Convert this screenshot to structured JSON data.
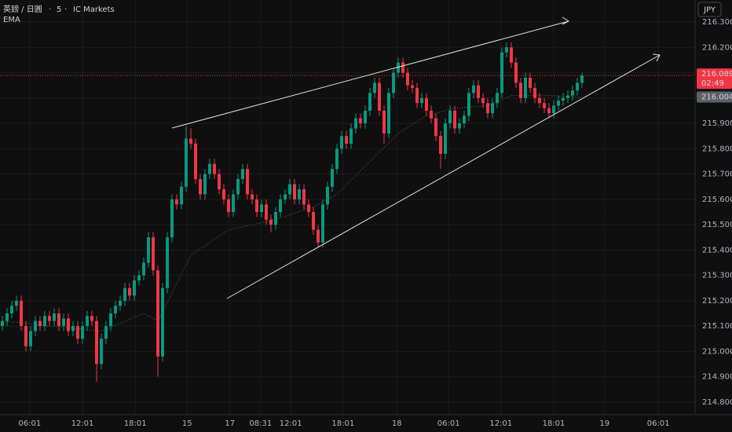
{
  "chart_data": {
    "type": "candlestick",
    "symbol": "英鎊 / 日圓",
    "interval": "5",
    "exchange": "IC Markets",
    "indicator": "EMA",
    "currency": "JPY",
    "up_color": "#089981",
    "down_color": "#f23645",
    "grid": true,
    "ylim": [
      214.75,
      216.387
    ],
    "xlim": [
      -0.5,
      147
    ],
    "yticks": [
      {
        "value": 216.3,
        "label": "216.300"
      },
      {
        "value": 216.2,
        "label": "216.200"
      },
      {
        "value": 216.1,
        "label": "216.100"
      },
      {
        "value": 216.0,
        "label": "216.000"
      },
      {
        "value": 215.9,
        "label": "215.900"
      },
      {
        "value": 215.8,
        "label": "215.800"
      },
      {
        "value": 215.7,
        "label": "215.700"
      },
      {
        "value": 215.6,
        "label": "215.600"
      },
      {
        "value": 215.5,
        "label": "215.500"
      },
      {
        "value": 215.4,
        "label": "215.400"
      },
      {
        "value": 215.3,
        "label": "215.300"
      },
      {
        "value": 215.2,
        "label": "215.200"
      },
      {
        "value": 215.1,
        "label": "215.100"
      },
      {
        "value": 215.0,
        "label": "215.000"
      },
      {
        "value": 214.9,
        "label": "214.900"
      },
      {
        "value": 214.8,
        "label": "214.800"
      }
    ],
    "xticks": [
      {
        "value": 5.8,
        "label": "06:01"
      },
      {
        "value": 17,
        "label": "12:01"
      },
      {
        "value": 28.2,
        "label": "18:01"
      },
      {
        "value": 39.2,
        "label": "15"
      },
      {
        "value": 48.3,
        "label": "17"
      },
      {
        "value": 54.8,
        "label": "08:31"
      },
      {
        "value": 61.2,
        "label": "12:01"
      },
      {
        "value": 72.3,
        "label": "18:01"
      },
      {
        "value": 83.7,
        "label": "18"
      },
      {
        "value": 94.7,
        "label": "06:01"
      },
      {
        "value": 105.8,
        "label": "12:01"
      },
      {
        "value": 117,
        "label": "18:01"
      },
      {
        "value": 127.8,
        "label": "19"
      },
      {
        "value": 139.2,
        "label": "06:01"
      }
    ],
    "open": [
      215.1,
      215.12,
      215.15,
      215.18,
      215.2,
      215.1,
      215.02,
      215.08,
      215.12,
      215.1,
      215.14,
      215.12,
      215.15,
      215.1,
      215.13,
      215.08,
      215.1,
      215.05,
      215.1,
      215.14,
      215.12,
      214.95,
      215.05,
      215.1,
      215.15,
      215.18,
      215.2,
      215.25,
      215.22,
      215.28,
      215.3,
      215.35,
      215.45,
      215.32,
      214.98,
      215.25,
      215.45,
      215.6,
      215.58,
      215.65,
      215.84,
      215.82,
      215.68,
      215.62,
      215.7,
      215.74,
      215.7,
      215.64,
      215.6,
      215.55,
      215.62,
      215.68,
      215.72,
      215.62,
      215.6,
      215.55,
      215.58,
      215.52,
      215.5,
      215.55,
      215.6,
      215.62,
      215.66,
      215.6,
      215.64,
      215.58,
      215.55,
      215.48,
      215.43,
      215.58,
      215.65,
      215.72,
      215.8,
      215.85,
      215.82,
      215.88,
      215.92,
      215.9,
      215.95,
      216.02,
      216.06,
      215.95,
      215.86,
      216.02,
      216.1,
      216.14,
      216.1,
      216.05,
      216.04,
      215.98,
      216.0,
      215.95,
      215.92,
      215.85,
      215.78,
      215.9,
      215.95,
      215.88,
      215.9,
      215.93,
      216.02,
      216.05,
      216.0,
      215.98,
      215.94,
      215.98,
      216.02,
      216.18,
      216.2,
      216.14,
      216.06,
      216.0,
      216.08,
      216.04,
      216.0,
      215.98,
      215.96,
      215.94,
      215.97,
      215.99,
      216.0,
      216.01,
      216.03,
      216.06
    ],
    "high": [
      215.14,
      215.17,
      215.2,
      215.22,
      215.22,
      215.12,
      215.1,
      215.14,
      215.14,
      215.16,
      215.16,
      215.17,
      215.17,
      215.15,
      215.15,
      215.12,
      215.12,
      215.12,
      215.16,
      215.16,
      215.14,
      215.07,
      215.12,
      215.17,
      215.2,
      215.22,
      215.27,
      215.27,
      215.3,
      215.32,
      215.37,
      215.47,
      215.47,
      215.34,
      215.27,
      215.47,
      215.62,
      215.62,
      215.67,
      215.89,
      215.88,
      215.84,
      215.7,
      215.72,
      215.76,
      215.76,
      215.72,
      215.66,
      215.62,
      215.64,
      215.7,
      215.74,
      215.74,
      215.64,
      215.62,
      215.6,
      215.6,
      215.54,
      215.57,
      215.62,
      215.64,
      215.68,
      215.68,
      215.66,
      215.66,
      215.6,
      215.57,
      215.5,
      215.6,
      215.67,
      215.74,
      215.82,
      215.87,
      215.87,
      215.9,
      215.94,
      215.94,
      215.97,
      216.04,
      216.08,
      216.08,
      215.97,
      216.04,
      216.12,
      216.16,
      216.16,
      216.12,
      216.07,
      216.06,
      216.02,
      216.02,
      215.97,
      215.94,
      215.87,
      215.92,
      215.97,
      215.97,
      215.92,
      215.95,
      216.04,
      216.07,
      216.07,
      216.02,
      216.0,
      216.0,
      216.04,
      216.2,
      216.22,
      216.22,
      216.16,
      216.08,
      216.1,
      216.1,
      216.06,
      216.02,
      216.0,
      215.98,
      215.99,
      216.01,
      216.02,
      216.03,
      216.05,
      216.08,
      216.1
    ],
    "low": [
      215.08,
      215.1,
      215.13,
      215.16,
      215.08,
      215.0,
      215.0,
      215.06,
      215.08,
      215.08,
      215.1,
      215.1,
      215.08,
      215.08,
      215.06,
      215.06,
      215.03,
      215.03,
      215.08,
      215.1,
      214.88,
      214.93,
      215.03,
      215.08,
      215.13,
      215.16,
      215.18,
      215.2,
      215.2,
      215.26,
      215.28,
      215.33,
      215.3,
      214.9,
      214.96,
      215.23,
      215.43,
      215.56,
      215.56,
      215.63,
      215.8,
      215.66,
      215.6,
      215.6,
      215.68,
      215.68,
      215.62,
      215.58,
      215.53,
      215.53,
      215.6,
      215.66,
      215.6,
      215.58,
      215.53,
      215.53,
      215.5,
      215.47,
      215.48,
      215.53,
      215.58,
      215.6,
      215.58,
      215.58,
      215.56,
      215.53,
      215.46,
      215.41,
      215.41,
      215.56,
      215.63,
      215.7,
      215.78,
      215.8,
      215.8,
      215.86,
      215.88,
      215.88,
      215.93,
      216.0,
      215.93,
      215.82,
      215.84,
      216.0,
      216.08,
      216.08,
      216.03,
      216.02,
      215.96,
      215.96,
      215.93,
      215.9,
      215.83,
      215.72,
      215.76,
      215.88,
      215.86,
      215.86,
      215.88,
      215.91,
      216.0,
      215.98,
      215.96,
      215.92,
      215.92,
      215.96,
      216.0,
      216.16,
      216.12,
      216.04,
      215.98,
      215.98,
      216.02,
      215.98,
      215.96,
      215.94,
      215.92,
      215.92,
      215.95,
      215.97,
      215.98,
      215.99,
      216.01,
      216.04
    ],
    "close": [
      215.12,
      215.15,
      215.18,
      215.2,
      215.1,
      215.02,
      215.08,
      215.12,
      215.1,
      215.14,
      215.12,
      215.15,
      215.1,
      215.13,
      215.08,
      215.1,
      215.05,
      215.1,
      215.14,
      215.12,
      214.95,
      215.05,
      215.1,
      215.15,
      215.18,
      215.2,
      215.25,
      215.22,
      215.28,
      215.3,
      215.35,
      215.45,
      215.32,
      214.98,
      215.25,
      215.45,
      215.6,
      215.58,
      215.65,
      215.84,
      215.82,
      215.68,
      215.62,
      215.7,
      215.74,
      215.7,
      215.64,
      215.6,
      215.55,
      215.62,
      215.68,
      215.72,
      215.62,
      215.6,
      215.55,
      215.58,
      215.52,
      215.5,
      215.55,
      215.6,
      215.62,
      215.66,
      215.6,
      215.64,
      215.58,
      215.55,
      215.48,
      215.43,
      215.58,
      215.65,
      215.72,
      215.8,
      215.85,
      215.82,
      215.88,
      215.92,
      215.9,
      215.95,
      216.02,
      216.06,
      215.95,
      215.86,
      216.02,
      216.1,
      216.14,
      216.1,
      216.05,
      216.04,
      215.98,
      216.0,
      215.95,
      215.92,
      215.85,
      215.78,
      215.9,
      215.95,
      215.88,
      215.9,
      215.93,
      216.02,
      216.05,
      216.0,
      215.98,
      215.94,
      215.98,
      216.02,
      216.18,
      216.2,
      216.14,
      216.06,
      216.0,
      216.08,
      216.04,
      216.0,
      215.98,
      215.96,
      215.94,
      215.97,
      215.99,
      216.0,
      216.01,
      216.03,
      216.06,
      216.089
    ],
    "ema": {
      "color": "#5d606b",
      "x": [
        0,
        21,
        30,
        33,
        40,
        48,
        58,
        66,
        71,
        78,
        84,
        90,
        96,
        103,
        108,
        116,
        123
      ],
      "values": [
        215.12,
        215.08,
        215.15,
        215.12,
        215.38,
        215.48,
        215.52,
        215.57,
        215.62,
        215.75,
        215.86,
        215.93,
        215.96,
        215.97,
        216.01,
        216.01,
        216.004
      ]
    },
    "last_price": 216.089,
    "countdown": "02:49",
    "ema_last": 216.004
  }
}
